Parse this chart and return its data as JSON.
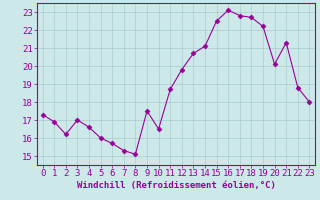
{
  "x": [
    0,
    1,
    2,
    3,
    4,
    5,
    6,
    7,
    8,
    9,
    10,
    11,
    12,
    13,
    14,
    15,
    16,
    17,
    18,
    19,
    20,
    21,
    22,
    23
  ],
  "y": [
    17.3,
    16.9,
    16.2,
    17.0,
    16.6,
    16.0,
    15.7,
    15.3,
    15.1,
    17.5,
    16.5,
    18.7,
    19.8,
    20.7,
    21.1,
    22.5,
    23.1,
    22.8,
    22.7,
    22.2,
    20.1,
    21.3,
    18.8,
    18.0
  ],
  "line_color": "#990099",
  "marker": "D",
  "marker_size": 2.5,
  "bg_color": "#cce8e8",
  "grid_color": "#aacccc",
  "xlabel": "Windchill (Refroidissement éolien,°C)",
  "xlim": [
    -0.5,
    23.5
  ],
  "ylim": [
    14.5,
    23.5
  ],
  "yticks": [
    15,
    16,
    17,
    18,
    19,
    20,
    21,
    22,
    23
  ],
  "xticks": [
    0,
    1,
    2,
    3,
    4,
    5,
    6,
    7,
    8,
    9,
    10,
    11,
    12,
    13,
    14,
    15,
    16,
    17,
    18,
    19,
    20,
    21,
    22,
    23
  ],
  "tick_color": "#990099",
  "label_color": "#990099",
  "label_fontsize": 6.5,
  "tick_fontsize": 6.5,
  "spine_color": "#990099"
}
